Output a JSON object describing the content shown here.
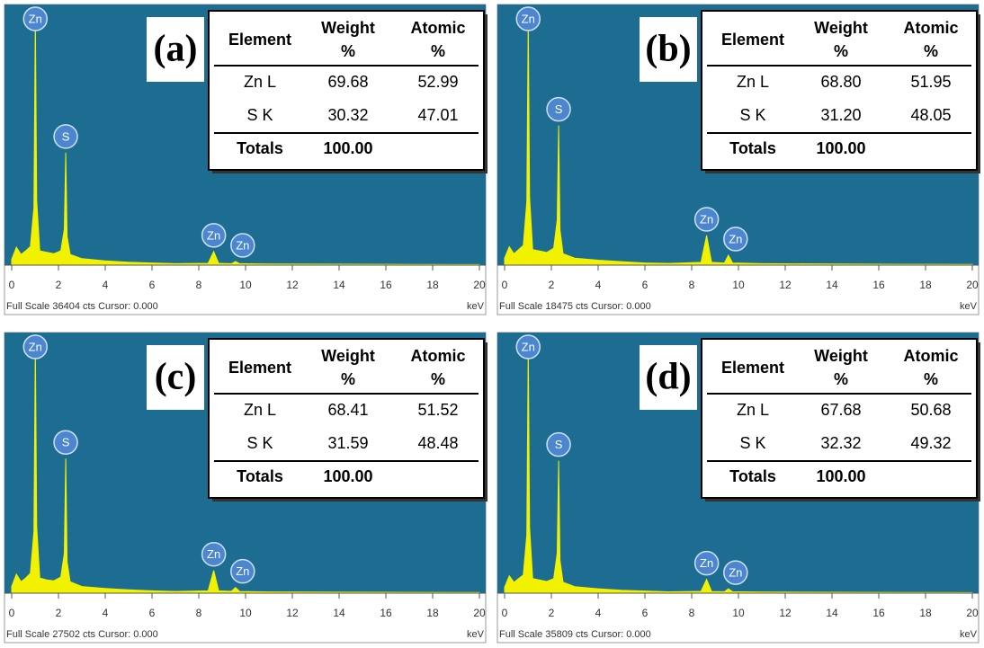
{
  "chart_data": [
    {
      "type": "area",
      "panel_label": "(a)",
      "color": "#f2f200",
      "x": [
        0,
        0.2,
        0.4,
        0.6,
        0.8,
        0.95,
        1.01,
        1.07,
        1.2,
        1.5,
        1.8,
        2.1,
        2.25,
        2.31,
        2.37,
        2.5,
        3,
        4,
        5,
        6,
        7,
        8.4,
        8.64,
        8.85,
        9.4,
        9.57,
        9.75,
        11,
        14,
        17,
        20
      ],
      "values": [
        800,
        2500,
        1500,
        2000,
        2600,
        8000,
        34800,
        9000,
        2000,
        1800,
        1600,
        2000,
        5000,
        15700,
        4000,
        1500,
        900,
        600,
        400,
        300,
        200,
        250,
        1900,
        250,
        200,
        500,
        200,
        150,
        120,
        100,
        80
      ],
      "xlim": [
        0,
        20
      ],
      "xticks": [
        0,
        2,
        4,
        6,
        8,
        10,
        12,
        14,
        16,
        18,
        20
      ],
      "ylim": [
        0,
        36404
      ],
      "xlabel": "keV",
      "footer": "Full Scale 36404 cts Cursor: 0.000",
      "peak_labels": [
        {
          "label": "Zn",
          "x": 1.01
        },
        {
          "label": "S",
          "x": 2.31
        },
        {
          "label": "Zn",
          "x": 8.64
        },
        {
          "label": "Zn",
          "x": 9.57
        }
      ],
      "table": {
        "columns": [
          [
            "Element"
          ],
          [
            "Weight",
            "%"
          ],
          [
            "Atomic",
            "%"
          ]
        ],
        "rows": [
          [
            "Zn L",
            "69.68",
            "52.99"
          ],
          [
            "S K",
            "30.32",
            "47.01"
          ],
          [
            "Totals",
            "100.00"
          ]
        ]
      }
    },
    {
      "type": "area",
      "panel_label": "(b)",
      "color": "#f2f200",
      "x": [
        0,
        0.2,
        0.4,
        0.6,
        0.8,
        0.95,
        1.01,
        1.07,
        1.2,
        1.5,
        1.8,
        2.1,
        2.25,
        2.31,
        2.37,
        2.5,
        3,
        4,
        5,
        6,
        7,
        8.4,
        8.64,
        8.85,
        9.4,
        9.57,
        9.75,
        11,
        14,
        17,
        20
      ],
      "values": [
        500,
        1300,
        800,
        1100,
        1400,
        4500,
        17600,
        4800,
        1100,
        1000,
        900,
        1200,
        3200,
        9900,
        2500,
        800,
        500,
        350,
        250,
        150,
        120,
        200,
        2100,
        200,
        150,
        700,
        150,
        100,
        80,
        60,
        50
      ],
      "xlim": [
        0,
        20
      ],
      "xticks": [
        0,
        2,
        4,
        6,
        8,
        10,
        12,
        14,
        16,
        18,
        20
      ],
      "ylim": [
        0,
        18475
      ],
      "xlabel": "keV",
      "footer": "Full Scale 18475 cts Cursor: 0.000",
      "peak_labels": [
        {
          "label": "Zn",
          "x": 1.01
        },
        {
          "label": "S",
          "x": 2.31
        },
        {
          "label": "Zn",
          "x": 8.64
        },
        {
          "label": "Zn",
          "x": 9.57
        }
      ],
      "table": {
        "columns": [
          [
            "Element"
          ],
          [
            "Weight",
            "%"
          ],
          [
            "Atomic",
            "%"
          ]
        ],
        "rows": [
          [
            "Zn L",
            "68.80",
            "51.95"
          ],
          [
            "S K",
            "31.20",
            "48.05"
          ],
          [
            "Totals",
            "100.00"
          ]
        ]
      }
    },
    {
      "type": "area",
      "panel_label": "(c)",
      "color": "#f2f200",
      "x": [
        0,
        0.2,
        0.4,
        0.6,
        0.8,
        0.95,
        1.01,
        1.07,
        1.2,
        1.5,
        1.8,
        2.1,
        2.25,
        2.31,
        2.37,
        2.5,
        3,
        4,
        5,
        6,
        7,
        8.4,
        8.64,
        8.85,
        9.4,
        9.57,
        9.75,
        11,
        14,
        17,
        20
      ],
      "values": [
        700,
        2000,
        1200,
        1600,
        2100,
        6500,
        26300,
        7000,
        1600,
        1400,
        1300,
        1700,
        4200,
        14200,
        3300,
        1200,
        700,
        500,
        350,
        250,
        180,
        250,
        2400,
        250,
        200,
        600,
        180,
        130,
        100,
        90,
        70
      ],
      "xlim": [
        0,
        20
      ],
      "xticks": [
        0,
        2,
        4,
        6,
        8,
        10,
        12,
        14,
        16,
        18,
        20
      ],
      "ylim": [
        0,
        27502
      ],
      "xlabel": "keV",
      "footer": "Full Scale 27502 cts Cursor: 0.000",
      "peak_labels": [
        {
          "label": "Zn",
          "x": 1.01
        },
        {
          "label": "S",
          "x": 2.31
        },
        {
          "label": "Zn",
          "x": 8.64
        },
        {
          "label": "Zn",
          "x": 9.57
        }
      ],
      "table": {
        "columns": [
          [
            "Element"
          ],
          [
            "Weight",
            "%"
          ],
          [
            "Atomic",
            "%"
          ]
        ],
        "rows": [
          [
            "Zn L",
            "68.41",
            "51.52"
          ],
          [
            "S K",
            "31.59",
            "48.48"
          ],
          [
            "Totals",
            "100.00"
          ]
        ]
      }
    },
    {
      "type": "area",
      "panel_label": "(d)",
      "color": "#f2f200",
      "x": [
        0,
        0.2,
        0.4,
        0.6,
        0.8,
        0.95,
        1.01,
        1.07,
        1.2,
        1.5,
        1.8,
        2.1,
        2.25,
        2.31,
        2.37,
        2.5,
        3,
        4,
        5,
        6,
        7,
        8.4,
        8.64,
        8.85,
        9.4,
        9.57,
        9.75,
        11,
        14,
        17,
        20
      ],
      "values": [
        800,
        2400,
        1500,
        2000,
        2500,
        8000,
        34100,
        9000,
        2000,
        1800,
        1600,
        2000,
        5500,
        18200,
        4500,
        1500,
        900,
        600,
        400,
        300,
        180,
        250,
        1900,
        230,
        200,
        600,
        200,
        150,
        120,
        100,
        80
      ],
      "xlim": [
        0,
        20
      ],
      "xticks": [
        0,
        2,
        4,
        6,
        8,
        10,
        12,
        14,
        16,
        18,
        20
      ],
      "ylim": [
        0,
        35809
      ],
      "xlabel": "keV",
      "footer": "Full Scale 35809 cts Cursor: 0.000",
      "peak_labels": [
        {
          "label": "Zn",
          "x": 1.01
        },
        {
          "label": "S",
          "x": 2.31
        },
        {
          "label": "Zn",
          "x": 8.64
        },
        {
          "label": "Zn",
          "x": 9.57
        }
      ],
      "table": {
        "columns": [
          [
            "Element"
          ],
          [
            "Weight",
            "%"
          ],
          [
            "Atomic",
            "%"
          ]
        ],
        "rows": [
          [
            "Zn L",
            "67.68",
            "50.68"
          ],
          [
            "S K",
            "32.32",
            "49.32"
          ],
          [
            "Totals",
            "100.00"
          ]
        ]
      }
    }
  ]
}
